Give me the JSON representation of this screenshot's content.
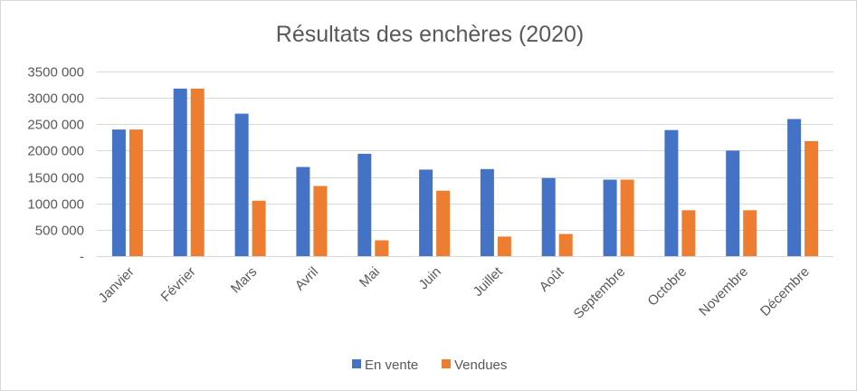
{
  "chart_data": {
    "type": "bar",
    "title": "Résultats des enchères (2020)",
    "xlabel": "",
    "ylabel": "",
    "ylim": [
      0,
      3500000
    ],
    "y_ticks": [
      {
        "value": 0,
        "label": "-"
      },
      {
        "value": 500000,
        "label": "500 000"
      },
      {
        "value": 1000000,
        "label": "1000 000"
      },
      {
        "value": 1500000,
        "label": "1500 000"
      },
      {
        "value": 2000000,
        "label": "2000 000"
      },
      {
        "value": 2500000,
        "label": "2500 000"
      },
      {
        "value": 3000000,
        "label": "3000 000"
      },
      {
        "value": 3500000,
        "label": "3500 000"
      }
    ],
    "grid": true,
    "legend_position": "bottom",
    "categories": [
      "Janvier",
      "Février",
      "Mars",
      "Avril",
      "Mai",
      "Juin",
      "Juillet",
      "Août",
      "Septembre",
      "Octobre",
      "Novembre",
      "Décembre"
    ],
    "series": [
      {
        "name": "En vente",
        "color": "#4472c4",
        "values": [
          2400000,
          3175000,
          2700000,
          1690000,
          1940000,
          1640000,
          1650000,
          1480000,
          1450000,
          2390000,
          2000000,
          2600000
        ]
      },
      {
        "name": "Vendues",
        "color": "#ed7d31",
        "values": [
          2400000,
          3175000,
          1050000,
          1330000,
          300000,
          1240000,
          370000,
          420000,
          1450000,
          870000,
          870000,
          2180000
        ]
      }
    ]
  }
}
